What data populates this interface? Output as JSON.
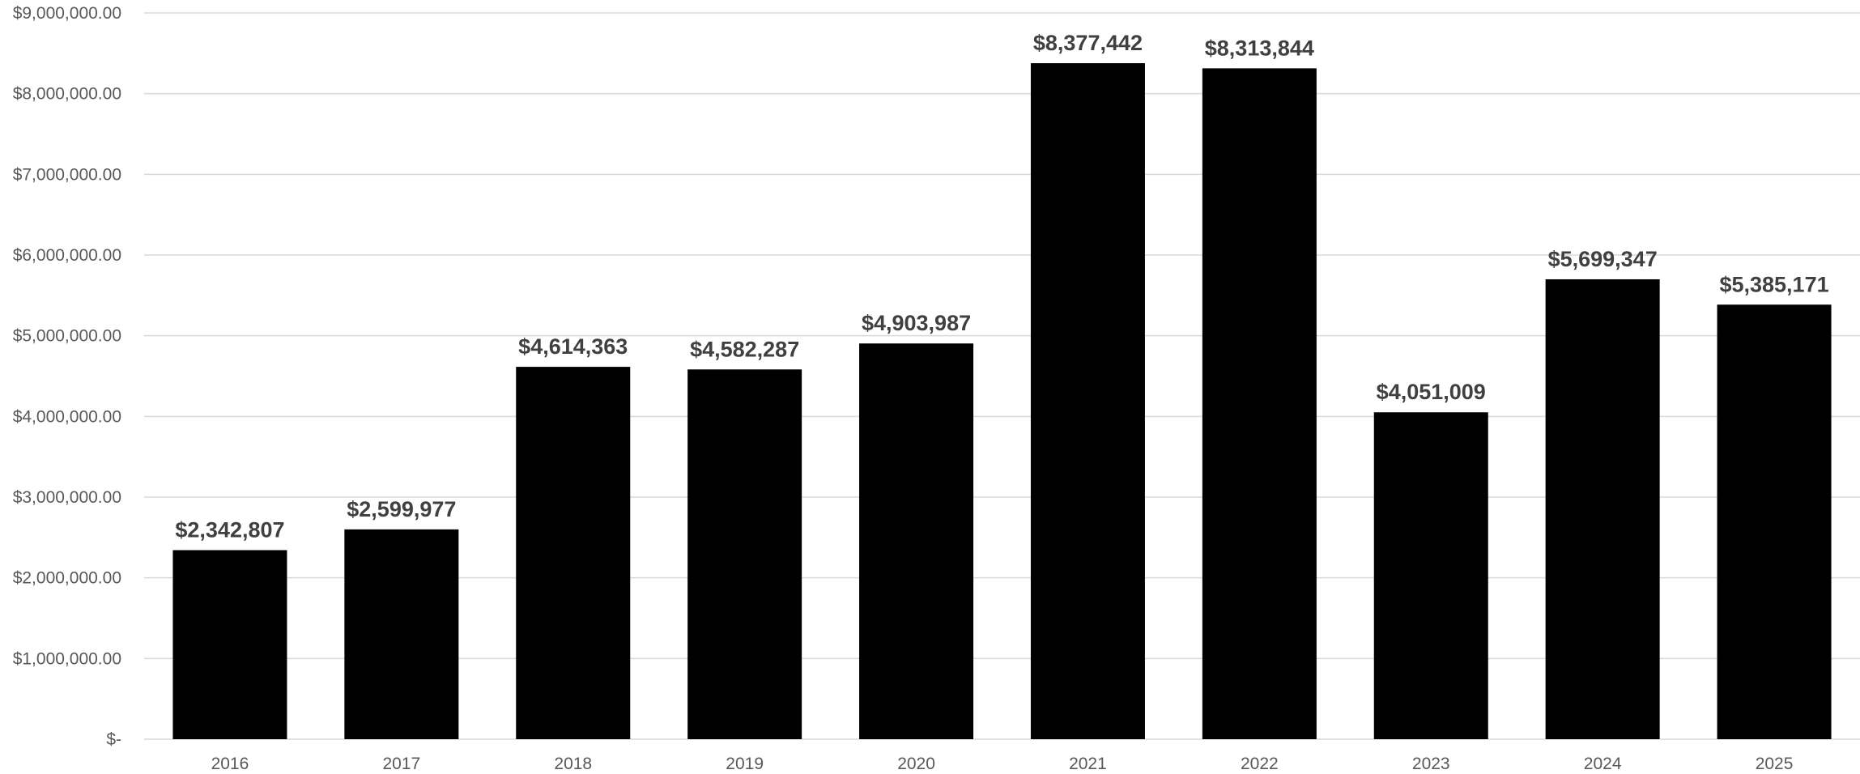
{
  "chart_data": {
    "type": "bar",
    "title": "",
    "xlabel": "",
    "ylabel": "",
    "categories": [
      "2016",
      "2017",
      "2018",
      "2019",
      "2020",
      "2021",
      "2022",
      "2023",
      "2024",
      "2025"
    ],
    "values": [
      2342807,
      2599977,
      4614363,
      4582287,
      4903987,
      8377442,
      8313844,
      4051009,
      5699347,
      5385171
    ],
    "data_labels": [
      "$2,342,807",
      "$2,599,977",
      "$4,614,363",
      "$4,582,287",
      "$4,903,987",
      "$8,377,442",
      "$8,313,844",
      "$4,051,009",
      "$5,699,347",
      "$5,385,171"
    ],
    "ylim": [
      0,
      9000000
    ],
    "y_ticks": [
      0,
      1000000,
      2000000,
      3000000,
      4000000,
      5000000,
      6000000,
      7000000,
      8000000,
      9000000
    ],
    "y_tick_labels": [
      "$-",
      "$1,000,000.00",
      "$2,000,000.00",
      "$3,000,000.00",
      "$4,000,000.00",
      "$5,000,000.00",
      "$6,000,000.00",
      "$7,000,000.00",
      "$8,000,000.00",
      "$9,000,000.00"
    ],
    "grid": true,
    "legend": "none",
    "bar_color": "#000000"
  }
}
